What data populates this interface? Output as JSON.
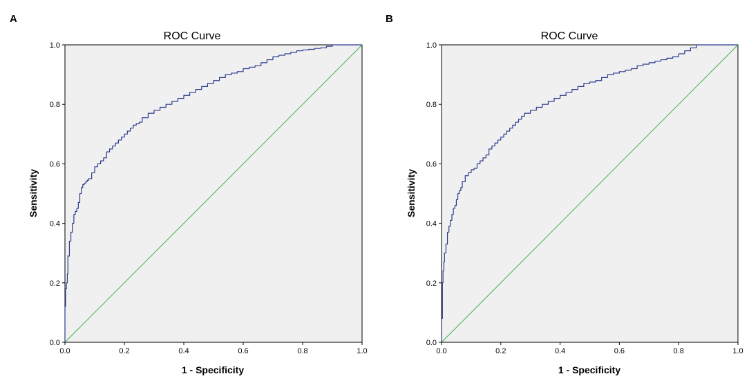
{
  "panels": [
    {
      "label": "A"
    },
    {
      "label": "B"
    }
  ],
  "colors": {
    "roc_curve": "#2b3a8c",
    "reference_line": "#3cb44b",
    "plot_background": "#f0f0f0"
  },
  "chart_data": [
    {
      "type": "line",
      "panel": "A",
      "title": "ROC Curve",
      "xlabel": "1 - Specificity",
      "ylabel": "Sensitivity",
      "xlim": [
        0,
        1
      ],
      "ylim": [
        0,
        1
      ],
      "xticks": [
        "0.0",
        "0.2",
        "0.4",
        "0.6",
        "0.8",
        "1.0"
      ],
      "yticks": [
        "0.0",
        "0.2",
        "0.4",
        "0.6",
        "0.8",
        "1.0"
      ],
      "series": [
        {
          "name": "ROC",
          "x": [
            0,
            0.002,
            0.005,
            0.008,
            0.01,
            0.015,
            0.02,
            0.025,
            0.03,
            0.035,
            0.04,
            0.045,
            0.05,
            0.055,
            0.06,
            0.065,
            0.07,
            0.075,
            0.08,
            0.09,
            0.1,
            0.11,
            0.12,
            0.13,
            0.14,
            0.15,
            0.16,
            0.17,
            0.18,
            0.19,
            0.2,
            0.21,
            0.22,
            0.23,
            0.24,
            0.25,
            0.26,
            0.28,
            0.3,
            0.32,
            0.34,
            0.36,
            0.38,
            0.4,
            0.42,
            0.44,
            0.46,
            0.48,
            0.5,
            0.52,
            0.54,
            0.56,
            0.58,
            0.6,
            0.62,
            0.64,
            0.66,
            0.68,
            0.7,
            0.72,
            0.74,
            0.76,
            0.78,
            0.8,
            0.82,
            0.84,
            0.86,
            0.88,
            0.9,
            0.92,
            0.94,
            0.96,
            0.98,
            1.0
          ],
          "y": [
            0,
            0.12,
            0.18,
            0.2,
            0.23,
            0.29,
            0.34,
            0.37,
            0.4,
            0.43,
            0.44,
            0.45,
            0.47,
            0.5,
            0.52,
            0.53,
            0.535,
            0.54,
            0.545,
            0.55,
            0.57,
            0.59,
            0.6,
            0.61,
            0.62,
            0.64,
            0.65,
            0.66,
            0.67,
            0.68,
            0.69,
            0.7,
            0.71,
            0.72,
            0.73,
            0.735,
            0.74,
            0.755,
            0.77,
            0.78,
            0.79,
            0.8,
            0.81,
            0.82,
            0.83,
            0.84,
            0.85,
            0.86,
            0.87,
            0.88,
            0.89,
            0.9,
            0.905,
            0.91,
            0.92,
            0.925,
            0.93,
            0.94,
            0.95,
            0.96,
            0.965,
            0.97,
            0.975,
            0.98,
            0.983,
            0.985,
            0.988,
            0.99,
            0.995,
            1.0,
            1.0,
            1.0,
            1.0,
            1.0
          ]
        },
        {
          "name": "Reference Line",
          "x": [
            0,
            1
          ],
          "y": [
            0,
            1
          ]
        }
      ]
    },
    {
      "type": "line",
      "panel": "B",
      "title": "ROC Curve",
      "xlabel": "1 - Specificity",
      "ylabel": "Sensitivity",
      "xlim": [
        0,
        1
      ],
      "ylim": [
        0,
        1
      ],
      "xticks": [
        "0.0",
        "0.2",
        "0.4",
        "0.6",
        "0.8",
        "1.0"
      ],
      "yticks": [
        "0.0",
        "0.2",
        "0.4",
        "0.6",
        "0.8",
        "1.0"
      ],
      "series": [
        {
          "name": "ROC",
          "x": [
            0,
            0.003,
            0.005,
            0.008,
            0.01,
            0.015,
            0.02,
            0.025,
            0.03,
            0.035,
            0.04,
            0.045,
            0.05,
            0.055,
            0.06,
            0.065,
            0.07,
            0.08,
            0.09,
            0.1,
            0.11,
            0.12,
            0.13,
            0.14,
            0.15,
            0.16,
            0.17,
            0.18,
            0.19,
            0.2,
            0.21,
            0.22,
            0.23,
            0.24,
            0.25,
            0.26,
            0.27,
            0.28,
            0.3,
            0.32,
            0.34,
            0.36,
            0.38,
            0.4,
            0.42,
            0.44,
            0.46,
            0.48,
            0.5,
            0.52,
            0.54,
            0.56,
            0.58,
            0.6,
            0.62,
            0.64,
            0.66,
            0.68,
            0.7,
            0.72,
            0.74,
            0.76,
            0.78,
            0.8,
            0.82,
            0.84,
            0.86,
            0.88,
            0.9,
            0.92,
            0.95,
            1.0
          ],
          "y": [
            0,
            0.08,
            0.2,
            0.24,
            0.27,
            0.3,
            0.33,
            0.37,
            0.39,
            0.41,
            0.43,
            0.45,
            0.46,
            0.48,
            0.5,
            0.51,
            0.52,
            0.54,
            0.56,
            0.57,
            0.58,
            0.585,
            0.6,
            0.61,
            0.62,
            0.63,
            0.65,
            0.66,
            0.67,
            0.68,
            0.69,
            0.7,
            0.71,
            0.72,
            0.73,
            0.74,
            0.75,
            0.76,
            0.77,
            0.78,
            0.79,
            0.8,
            0.81,
            0.82,
            0.83,
            0.84,
            0.85,
            0.86,
            0.87,
            0.875,
            0.88,
            0.89,
            0.9,
            0.905,
            0.91,
            0.915,
            0.92,
            0.93,
            0.935,
            0.94,
            0.945,
            0.95,
            0.955,
            0.96,
            0.97,
            0.98,
            0.99,
            1.0,
            1.0,
            1.0,
            1.0,
            1.0
          ]
        },
        {
          "name": "Reference Line",
          "x": [
            0,
            1
          ],
          "y": [
            0,
            1
          ]
        }
      ]
    }
  ]
}
